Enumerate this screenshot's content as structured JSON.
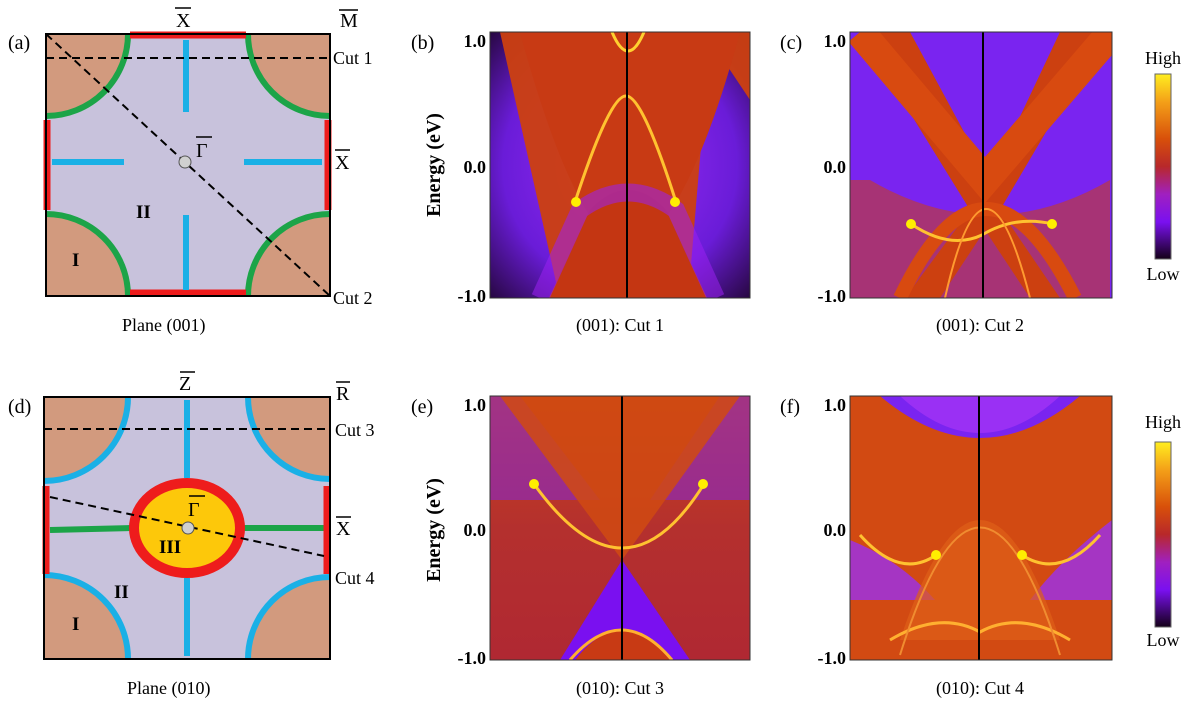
{
  "panels": {
    "a": {
      "tag": "(a)",
      "caption": "Plane (001)",
      "top_label": "X",
      "corner_label": "M",
      "right_label": "X",
      "center_label": "Γ",
      "cut_top": "Cut 1",
      "cut_bottom": "Cut 2",
      "region_1": "I",
      "region_2": "II"
    },
    "b": {
      "tag": "(b)",
      "caption": "(001): Cut 1"
    },
    "c": {
      "tag": "(c)",
      "caption": "(001): Cut 2"
    },
    "d": {
      "tag": "(d)",
      "caption": "Plane (010)",
      "top_label": "Z",
      "corner_label": "R",
      "right_label": "X",
      "center_label": "Γ",
      "cut_top": "Cut 3",
      "cut_bottom": "Cut 4",
      "region_1": "I",
      "region_2": "II",
      "region_3": "III"
    },
    "e": {
      "tag": "(e)",
      "caption": "(010): Cut 3"
    },
    "f": {
      "tag": "(f)",
      "caption": "(010): Cut 4"
    }
  },
  "axis": {
    "ylabel": "Energy (eV)",
    "ticks": [
      "1.0",
      "0.0",
      "-1.0"
    ]
  },
  "colorbar": {
    "high": "High",
    "low": "Low"
  },
  "colors": {
    "bulk": "#d29a7e",
    "lavender": "#c8c2dc",
    "red": "#ee1c1c",
    "green": "#1ca448",
    "cyan": "#1ab0e6",
    "yellow": "#fdc80a",
    "dot": "#ffee00"
  }
}
